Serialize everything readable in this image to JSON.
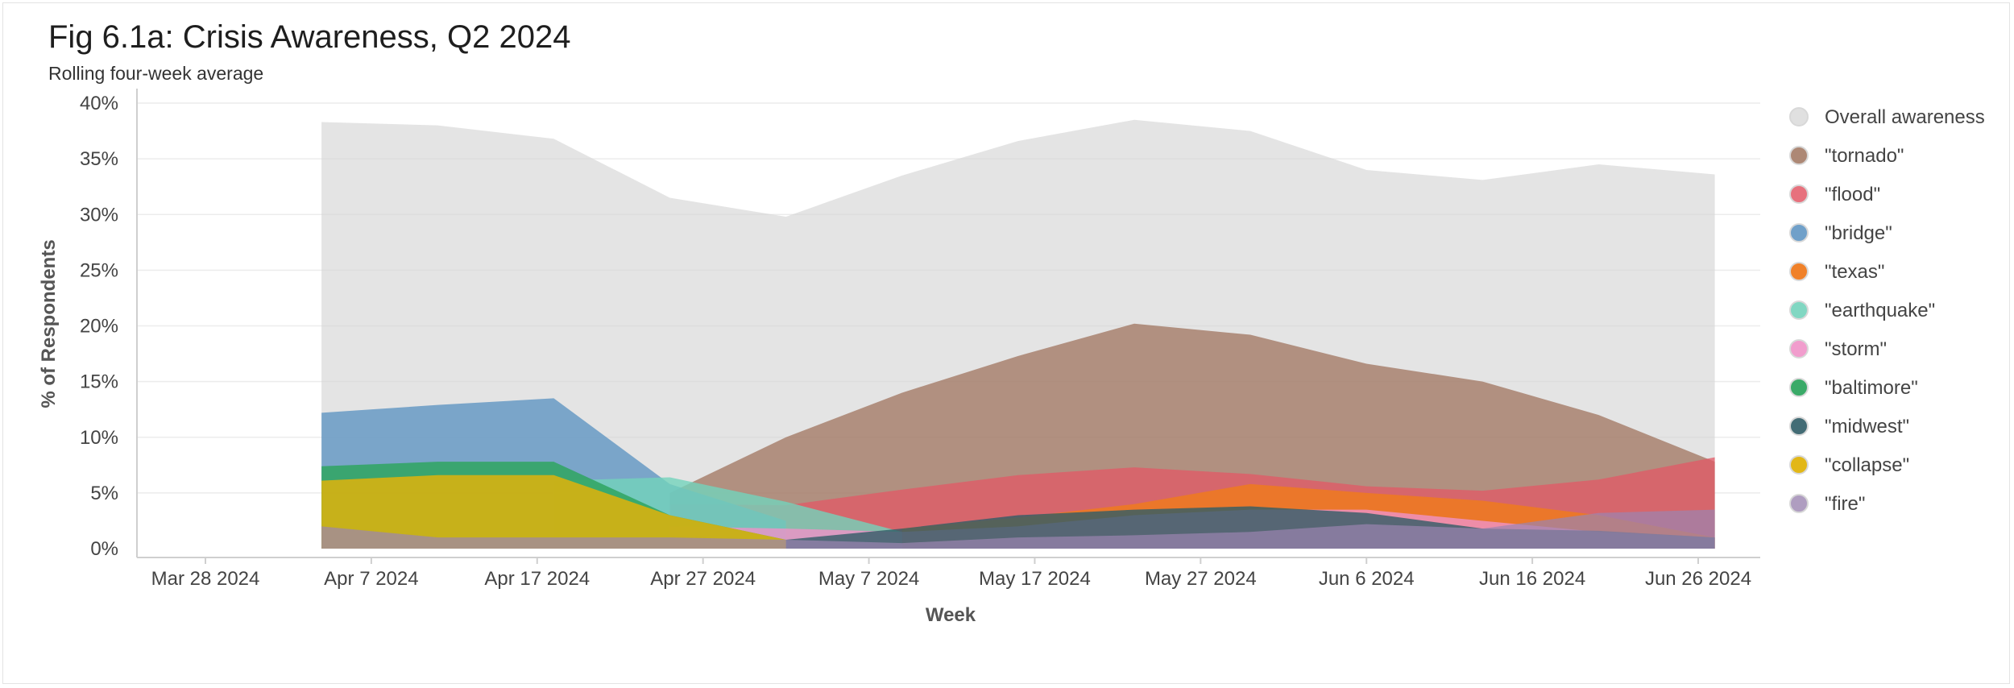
{
  "chart_data": {
    "type": "area",
    "title": "Fig 6.1a: Crisis Awareness, Q2 2024",
    "subtitle": "Rolling four-week average",
    "xlabel": "Week",
    "ylabel": "% of Respondents",
    "x_ticks": [
      "Mar 28 2024",
      "Apr 7 2024",
      "Apr 17 2024",
      "Apr 27 2024",
      "May 7 2024",
      "May 17 2024",
      "May 27 2024",
      "Jun 6 2024",
      "Jun 16 2024",
      "Jun 26 2024"
    ],
    "y_ticks": [
      "0%",
      "5%",
      "10%",
      "15%",
      "20%",
      "25%",
      "30%",
      "35%",
      "40%"
    ],
    "ylim": [
      0,
      40
    ],
    "xlim": [
      "2024-03-28",
      "2024-06-26"
    ],
    "grid": true,
    "legend_position": "right",
    "x": [
      "2024-04-04",
      "2024-04-11",
      "2024-04-18",
      "2024-04-25",
      "2024-05-02",
      "2024-05-09",
      "2024-05-16",
      "2024-05-23",
      "2024-05-30",
      "2024-06-06",
      "2024-06-13",
      "2024-06-20",
      "2024-06-27"
    ],
    "series": [
      {
        "name": "Overall awareness",
        "color": "#d6d6d6",
        "opacity": 0.65,
        "values": [
          38.3,
          38.0,
          36.8,
          31.5,
          29.8,
          33.5,
          36.6,
          38.5,
          37.5,
          34.0,
          33.1,
          34.5,
          33.6
        ]
      },
      {
        "name": "\"tornado\"",
        "color": "#a47b66",
        "opacity": 0.8,
        "values": [
          null,
          null,
          null,
          5.0,
          10.0,
          14.0,
          17.3,
          20.2,
          19.2,
          16.6,
          15.0,
          12.0,
          7.8
        ]
      },
      {
        "name": "\"flood\"",
        "color": "#e35866",
        "opacity": 0.75,
        "values": [
          null,
          null,
          null,
          4.0,
          3.9,
          5.3,
          6.6,
          7.3,
          6.7,
          5.6,
          5.2,
          6.2,
          8.2
        ]
      },
      {
        "name": "\"bridge\"",
        "color": "#5c93c2",
        "opacity": 0.78,
        "values": [
          12.2,
          12.9,
          13.5,
          5.8,
          2.5,
          null,
          null,
          null,
          null,
          null,
          null,
          null,
          null
        ]
      },
      {
        "name": "\"texas\"",
        "color": "#ef7a1e",
        "opacity": 0.85,
        "values": [
          null,
          null,
          null,
          null,
          null,
          1.8,
          2.8,
          4.0,
          5.8,
          5.0,
          4.3,
          3.0,
          1.0
        ]
      },
      {
        "name": "\"earthquake\"",
        "color": "#73d3bb",
        "opacity": 0.8,
        "values": [
          null,
          null,
          6.1,
          6.4,
          4.2,
          1.5,
          null,
          null,
          null,
          null,
          null,
          null,
          null
        ]
      },
      {
        "name": "\"storm\"",
        "color": "#ef92c8",
        "opacity": 0.8,
        "values": [
          null,
          null,
          null,
          2.0,
          1.8,
          1.5,
          2.0,
          3.0,
          3.5,
          3.5,
          2.5,
          1.5,
          1.0
        ]
      },
      {
        "name": "\"baltimore\"",
        "color": "#2fa560",
        "opacity": 0.85,
        "values": [
          7.4,
          7.8,
          7.8,
          3.0,
          0.8,
          null,
          null,
          null,
          null,
          null,
          null,
          null,
          null
        ]
      },
      {
        "name": "\"midwest\"",
        "color": "#2f5c66",
        "opacity": 0.8,
        "values": [
          null,
          null,
          null,
          null,
          0.8,
          1.8,
          3.0,
          3.5,
          3.8,
          3.2,
          1.8,
          1.6,
          1.0
        ]
      },
      {
        "name": "\"collapse\"",
        "color": "#e0b30b",
        "opacity": 0.85,
        "values": [
          6.1,
          6.6,
          6.6,
          3.0,
          0.8,
          null,
          null,
          null,
          null,
          null,
          null,
          null,
          null
        ]
      },
      {
        "name": "\"fire\"",
        "color": "#9b85b0",
        "opacity": 0.7,
        "values": [
          2.0,
          1.0,
          1.0,
          1.0,
          0.8,
          0.5,
          1.0,
          1.2,
          1.5,
          2.2,
          1.8,
          3.2,
          3.5
        ]
      }
    ]
  }
}
